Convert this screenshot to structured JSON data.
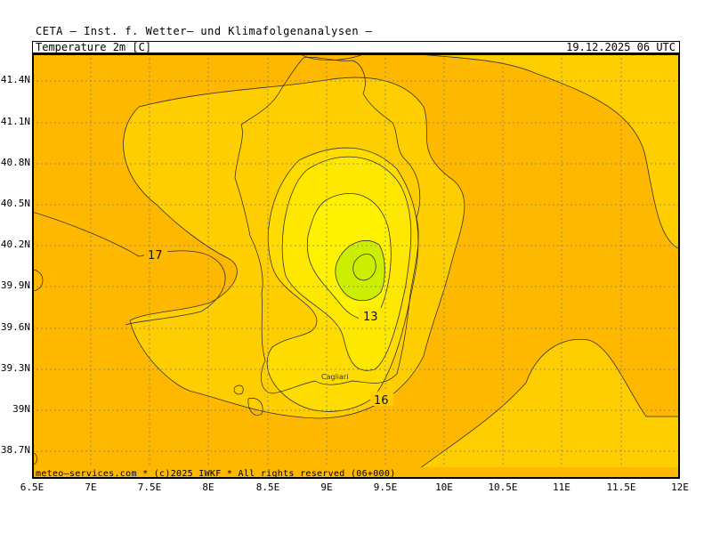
{
  "header": {
    "title": "CETA  —  Inst. f. Wetter— und Klimafolgenanalysen  —",
    "variable": "Temperature_2m_[C]",
    "datetime": "19.12.2025 06 UTC"
  },
  "axes": {
    "lat_labels": [
      "41.4N",
      "41.1N",
      "40.8N",
      "40.5N",
      "40.2N",
      "39.9N",
      "39.6N",
      "39.3N",
      "39N",
      "38.7N"
    ],
    "lon_labels": [
      "6.5E",
      "7E",
      "7.5E",
      "8E",
      "8.5E",
      "9E",
      "9.5E",
      "10E",
      "10.5E",
      "11E",
      "11.5E",
      "12E"
    ]
  },
  "contour_labels": {
    "c17": "17",
    "c13": "13",
    "c16": "16"
  },
  "city": "Cagliari",
  "footer": "meteo—services.com * (c)2025 IWKF * All rights reserved (06+000)",
  "colors": {
    "warm": "#FFB800",
    "mild": "#FFCE00",
    "cool": "#FFE000",
    "cooler": "#FFF000",
    "coldest": "#CCEE00"
  }
}
